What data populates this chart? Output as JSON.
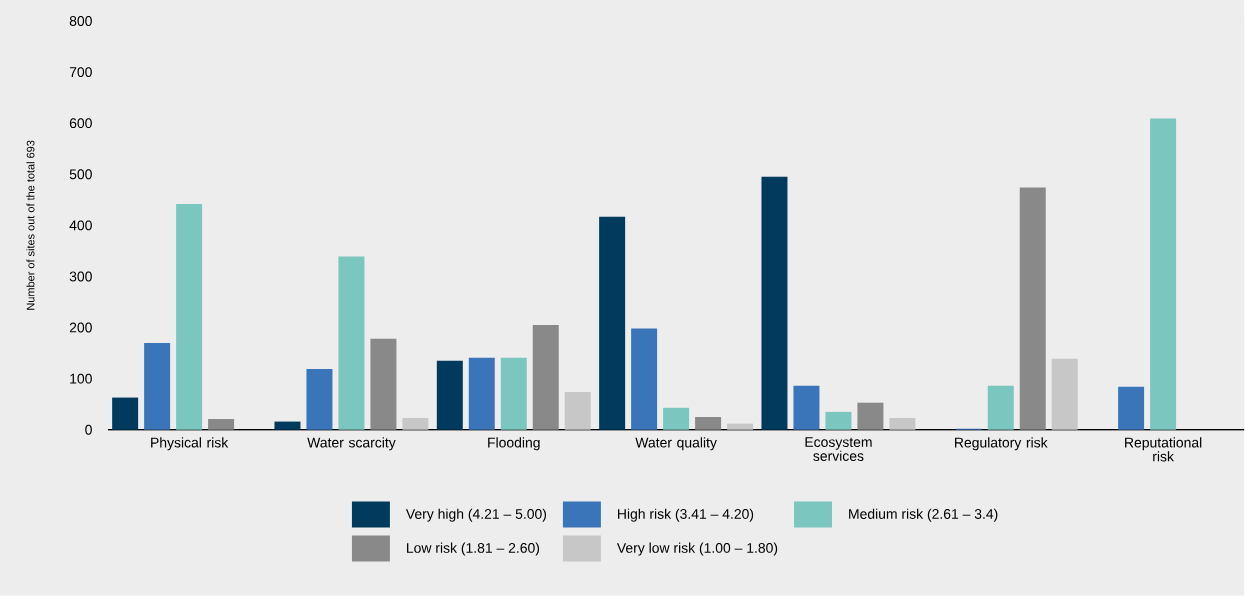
{
  "chart_data": {
    "type": "bar",
    "ylabel": "Number of sites out of the total 693",
    "categories": [
      "Physical risk",
      "Water scarcity",
      "Flooding",
      "Water quality",
      "Ecosystem services",
      "Regulatory risk",
      "Reputational risk"
    ],
    "series": [
      {
        "name": "Very high (4.21 – 5.00)",
        "color": "#003a5d",
        "values": [
          63,
          16,
          135,
          417,
          495,
          0,
          0
        ]
      },
      {
        "name": "High risk (3.41 – 4.20)",
        "color": "#3a75ba",
        "values": [
          170,
          119,
          141,
          198,
          86,
          2,
          84
        ]
      },
      {
        "name": "Medium risk (2.61 – 3.4)",
        "color": "#7bc6bf",
        "values": [
          442,
          339,
          141,
          43,
          35,
          86,
          609
        ]
      },
      {
        "name": "Low risk (1.81 – 2.60)",
        "color": "#898989",
        "values": [
          21,
          178,
          205,
          25,
          53,
          474,
          0
        ]
      },
      {
        "name": "Very low risk  (1.00 – 1.80)",
        "color": "#c7c7c7",
        "values": [
          0,
          23,
          74,
          12,
          23,
          139,
          0
        ]
      }
    ],
    "ylim": [
      0,
      800
    ],
    "yticks": [
      0,
      100,
      200,
      300,
      400,
      500,
      600,
      700,
      800
    ],
    "grid": false,
    "legend": "bottom"
  }
}
